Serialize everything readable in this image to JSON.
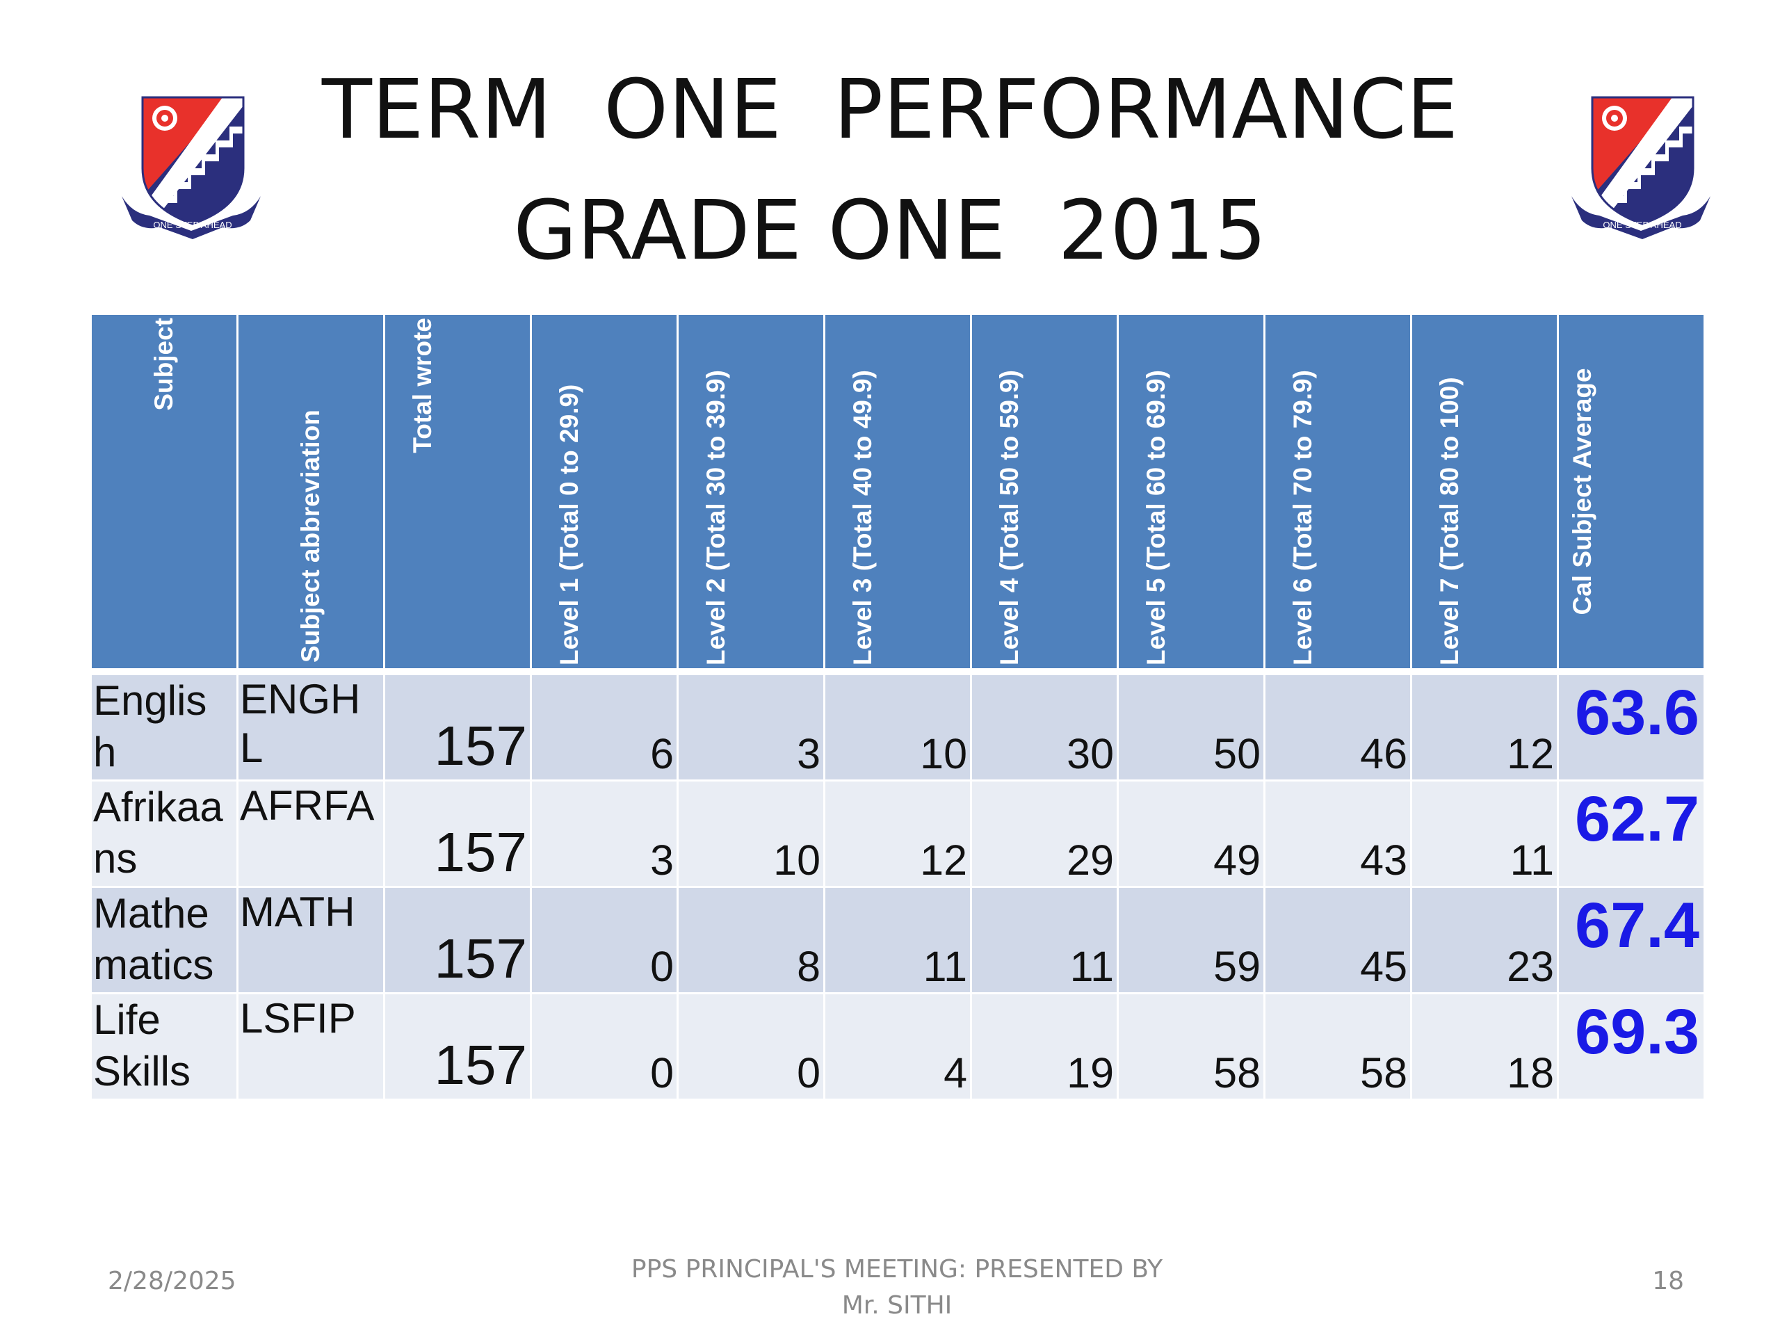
{
  "slide": {
    "title_line1": "TERM  ONE  PERFORMANCE",
    "title_line2": "GRADE ONE  2015"
  },
  "logo": {
    "motto": "ONE STEP AHEAD",
    "colors": {
      "red": "#e8312b",
      "navy": "#2b2f7d",
      "white": "#ffffff"
    }
  },
  "table": {
    "headers": [
      "Subject",
      "Subject abbreviation",
      "Total wrote",
      "Level 1 (Total  0 to 29.9)",
      "Level 2 (Total 30 to 39.9)",
      "Level 3 (Total  40 to 49.9)",
      "Level 4 (Total 50 to 59.9)",
      "Level 5 (Total  60 to 69.9)",
      "Level 6 (Total 70 to 79.9)",
      "Level 7 (Total  80 to 100)",
      "Cal Subject Average"
    ],
    "rows": [
      {
        "subject_line1": "Englis",
        "subject_line2": "h",
        "abbr_line1": "ENGH",
        "abbr_line2": "L",
        "total": "157",
        "levels": [
          "6",
          "3",
          "10",
          "30",
          "50",
          "46",
          "12"
        ],
        "average": "63.6"
      },
      {
        "subject_line1": "Afrikaa",
        "subject_line2": "ns",
        "abbr_line1": "AFRFA",
        "abbr_line2": "",
        "total": "157",
        "levels": [
          "3",
          "10",
          "12",
          "29",
          "49",
          "43",
          "11"
        ],
        "average": "62.7"
      },
      {
        "subject_line1": "Mathe",
        "subject_line2": "matics",
        "abbr_line1": "MATH",
        "abbr_line2": "",
        "total": "157",
        "levels": [
          "0",
          "8",
          "11",
          "11",
          "59",
          "45",
          "23"
        ],
        "average": "67.4"
      },
      {
        "subject_line1": "Life",
        "subject_line2": "Skills",
        "abbr_line1": "LSFIP",
        "abbr_line2": "",
        "total": "157",
        "levels": [
          "0",
          "0",
          "4",
          "19",
          "58",
          "58",
          "18"
        ],
        "average": "69.3"
      }
    ],
    "colors": {
      "header_bg": "#4f81bd",
      "row_dark": "#d0d8e8",
      "row_light": "#e9edf4",
      "average_text": "#1a1ae6"
    }
  },
  "footer": {
    "date": "2/28/2025",
    "center_line1": "PPS  PRINCIPAL'S MEETING: PRESENTED  BY",
    "center_line2": "Mr. SITHI",
    "page": "18"
  }
}
